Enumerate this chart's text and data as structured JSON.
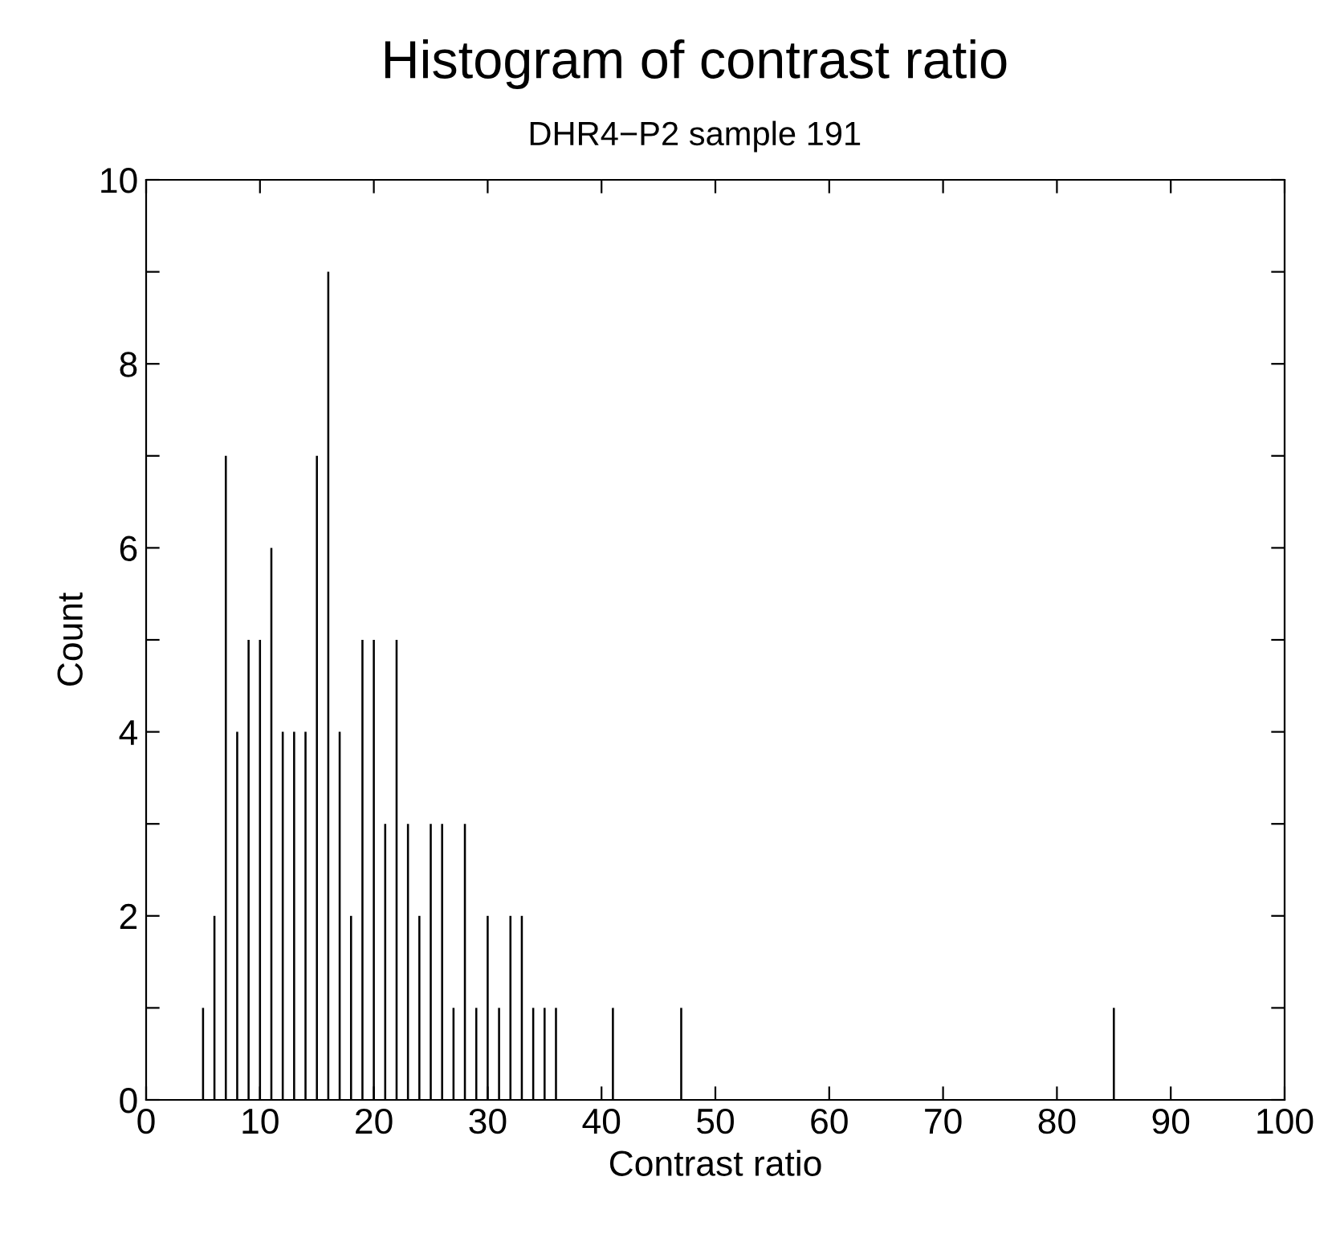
{
  "chart_data": {
    "type": "bar",
    "title": "Histogram of contrast ratio",
    "subtitle": "DHR4−P2 sample 191",
    "xlabel": "Contrast ratio",
    "ylabel": "Count",
    "x": [
      5,
      6,
      7,
      8,
      9,
      10,
      11,
      12,
      13,
      14,
      15,
      16,
      17,
      18,
      19,
      20,
      21,
      22,
      23,
      24,
      25,
      26,
      27,
      28,
      29,
      30,
      31,
      32,
      33,
      34,
      35,
      36,
      41,
      47,
      85
    ],
    "values": [
      1,
      2,
      7,
      4,
      5,
      5,
      6,
      4,
      4,
      4,
      7,
      9,
      4,
      2,
      5,
      5,
      3,
      5,
      3,
      2,
      3,
      3,
      1,
      3,
      1,
      2,
      1,
      2,
      2,
      1,
      1,
      1,
      1,
      1,
      1
    ],
    "color": "#000000",
    "xlim": [
      0,
      100
    ],
    "xticks": [
      0,
      10,
      20,
      30,
      40,
      50,
      60,
      70,
      80,
      90,
      100
    ],
    "ylim": [
      0,
      10
    ],
    "yticks": [
      0,
      {
        "value": 1,
        "label": null
      },
      2,
      {
        "value": 3,
        "label": null
      },
      4,
      {
        "value": 5,
        "label": null
      },
      6,
      {
        "value": 7,
        "label": null
      },
      8,
      {
        "value": 9,
        "label": null
      },
      10
    ],
    "grid": false,
    "legend": false
  }
}
